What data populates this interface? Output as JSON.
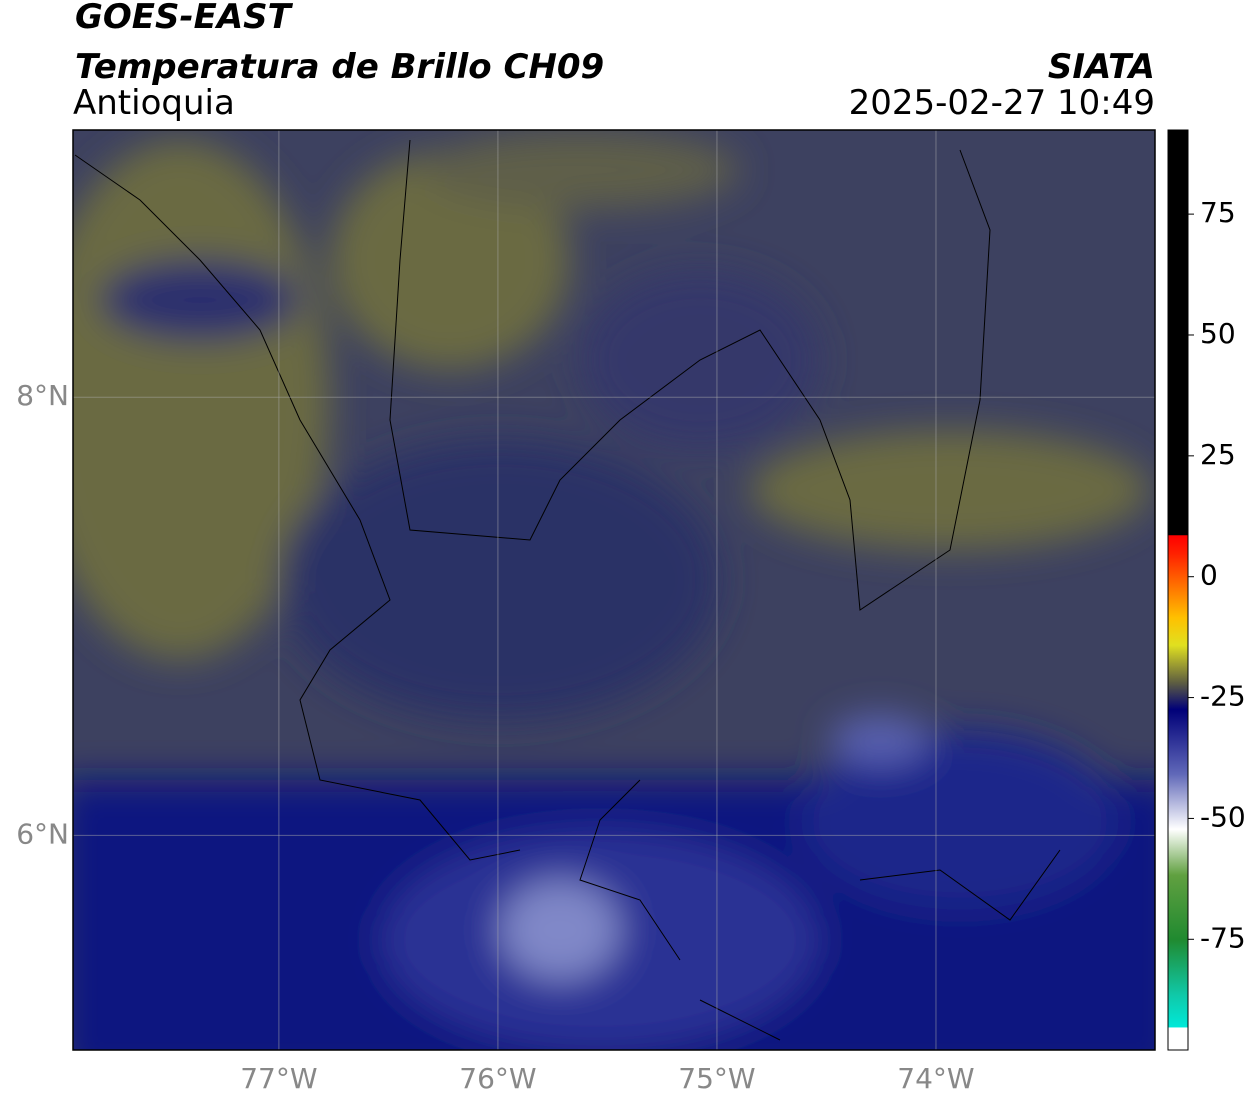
{
  "header": {
    "satellite": "GOES-EAST",
    "product": "Temperatura de Brillo CH09",
    "region": "Antioquia",
    "source": "SIATA",
    "datetime": "2025-02-27 10:49"
  },
  "map": {
    "lonlim": [
      -77.94,
      -73.0
    ],
    "latlim": [
      5.02,
      9.22
    ],
    "lonticks": [
      {
        "value": -77,
        "label": "77°W"
      },
      {
        "value": -76,
        "label": "76°W"
      },
      {
        "value": -75,
        "label": "75°W"
      },
      {
        "value": -74,
        "label": "74°W"
      }
    ],
    "latticks": [
      {
        "value": 8,
        "label": "8°N"
      },
      {
        "value": 6,
        "label": "6°N"
      }
    ],
    "grid": true
  },
  "colorbar": {
    "lim": [
      -97.9,
      92.4
    ],
    "ticks": [
      75,
      50,
      25,
      0,
      -25,
      -50,
      -75
    ]
  }
}
